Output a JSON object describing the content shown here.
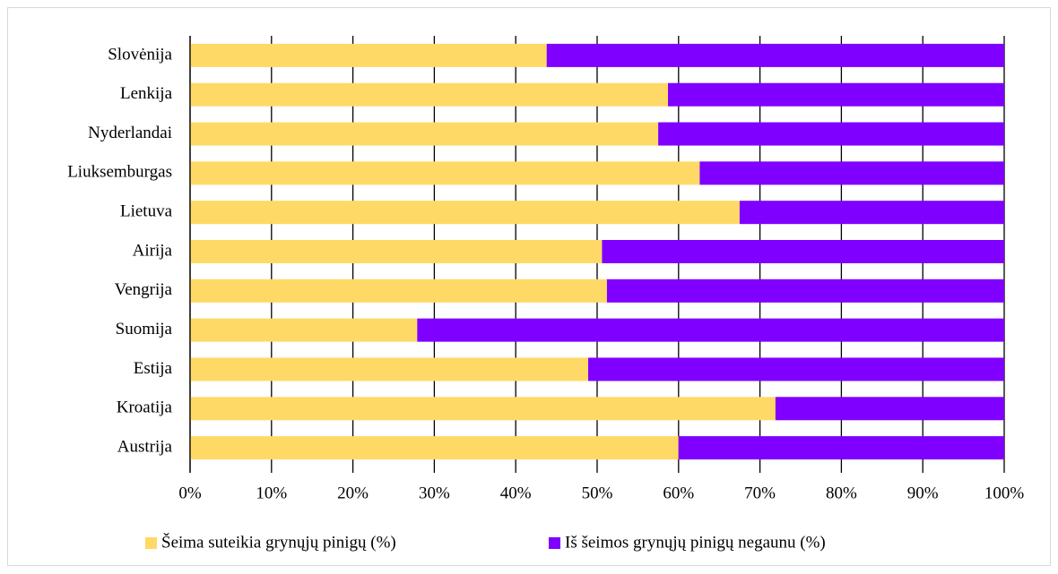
{
  "chart_data": {
    "type": "stacked-barh",
    "categories": [
      "Slovėnija",
      "Lenkija",
      "Nyderlandai",
      "Liuksemburgas",
      "Lietuva",
      "Airija",
      "Vengrija",
      "Suomija",
      "Estija",
      "Kroatija",
      "Austrija"
    ],
    "series": [
      {
        "name": "Šeima suteikia grynųjų pinigų (%)",
        "color": "#ffd966",
        "values": [
          43.8,
          58.7,
          57.5,
          62.6,
          67.5,
          50.6,
          51.2,
          27.9,
          48.9,
          71.9,
          60.0
        ]
      },
      {
        "name": "Iš šeimos grynųjų pinigų negaunu (%)",
        "color": "#7f00ff",
        "values": [
          56.2,
          41.3,
          42.5,
          37.4,
          32.5,
          49.4,
          48.8,
          72.1,
          51.1,
          28.1,
          40.0
        ]
      }
    ],
    "xlim": [
      0,
      100
    ],
    "xticks": [
      {
        "value": 0,
        "label": "0%"
      },
      {
        "value": 10,
        "label": "10%"
      },
      {
        "value": 20,
        "label": "20%"
      },
      {
        "value": 30,
        "label": "30%"
      },
      {
        "value": 40,
        "label": "40%"
      },
      {
        "value": 50,
        "label": "50%"
      },
      {
        "value": 60,
        "label": "60%"
      },
      {
        "value": 70,
        "label": "70%"
      },
      {
        "value": 80,
        "label": "80%"
      },
      {
        "value": 90,
        "label": "90%"
      },
      {
        "value": 100,
        "label": "100%"
      }
    ],
    "grid": true,
    "legend": "bottom"
  }
}
